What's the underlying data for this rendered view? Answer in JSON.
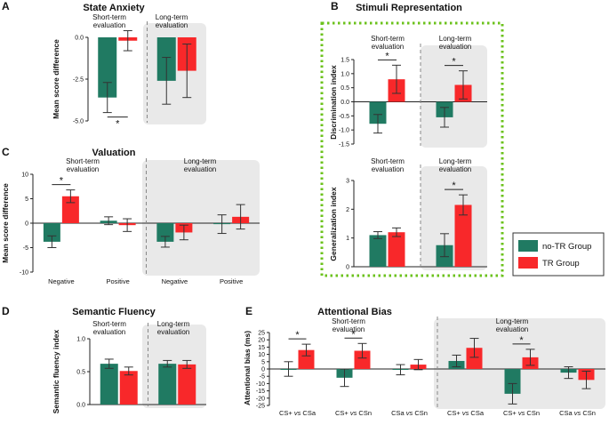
{
  "colors": {
    "no_tr": "#207a62",
    "tr": "#f8282a",
    "shade": "#e9e9e9",
    "green_box": "#6bc21b"
  },
  "legend": {
    "no_tr_label": "no-TR Group",
    "tr_label": "TR Group"
  },
  "chart_data": [
    {
      "id": "A",
      "panel_label": "A",
      "type": "bar",
      "title": "State Anxiety",
      "ylabel": "Mean score difference",
      "ylim": [
        -5,
        0
      ],
      "yticks": [
        "-5.0",
        "-2.5",
        "0.0"
      ],
      "groups": [
        {
          "label": "Short-term\nevaluation",
          "shaded": false,
          "categories": [
            {
              "label": "",
              "no_tr": -3.6,
              "no_tr_err": 0.9,
              "tr": -0.2,
              "tr_err": 0.6
            }
          ]
        },
        {
          "label": "Long-term\nevaluation",
          "shaded": true,
          "categories": [
            {
              "label": "",
              "no_tr": -2.6,
              "no_tr_err": 1.4,
              "tr": -2.0,
              "tr_err": 1.6
            }
          ]
        }
      ],
      "annotations": [
        {
          "text": "*",
          "group": 0,
          "pos": "below"
        }
      ]
    },
    {
      "id": "B1",
      "panel_label": "B",
      "type": "bar",
      "title": "Stimuli Representation",
      "ylabel": "Discrimination index",
      "ylim": [
        -1.5,
        1.5
      ],
      "yticks": [
        "-1.5",
        "-1.0",
        "-0.5",
        "0.0",
        "0.5",
        "1.0",
        "1.5"
      ],
      "groups": [
        {
          "label": "Short-term\nevaluation",
          "shaded": false,
          "categories": [
            {
              "label": "",
              "no_tr": -0.78,
              "no_tr_err": 0.33,
              "tr": 0.8,
              "tr_err": 0.5
            }
          ]
        },
        {
          "label": "Long-term\nevaluation",
          "shaded": true,
          "categories": [
            {
              "label": "",
              "no_tr": -0.55,
              "no_tr_err": 0.35,
              "tr": 0.6,
              "tr_err": 0.5
            }
          ]
        }
      ],
      "annotations": [
        {
          "text": "*",
          "group": 0,
          "pos": "above"
        },
        {
          "text": "*",
          "group": 1,
          "pos": "above"
        }
      ]
    },
    {
      "id": "B2",
      "panel_label": "",
      "type": "bar",
      "title": "",
      "ylabel": "Generalization index",
      "ylim": [
        0,
        3
      ],
      "yticks": [
        "0",
        "1",
        "2",
        "3"
      ],
      "groups": [
        {
          "label": "Short-term\nevaluation",
          "shaded": false,
          "categories": [
            {
              "label": "",
              "no_tr": 1.1,
              "no_tr_err": 0.12,
              "tr": 1.2,
              "tr_err": 0.15
            }
          ]
        },
        {
          "label": "Long-term\nevaluation",
          "shaded": true,
          "categories": [
            {
              "label": "",
              "no_tr": 0.75,
              "no_tr_err": 0.4,
              "tr": 2.15,
              "tr_err": 0.35
            }
          ]
        }
      ],
      "annotations": [
        {
          "text": "*",
          "group": 1,
          "pos": "above"
        }
      ]
    },
    {
      "id": "C",
      "panel_label": "C",
      "type": "bar",
      "title": "Valuation",
      "ylabel": "Mean score difference",
      "ylim": [
        -10,
        10
      ],
      "yticks": [
        "-10",
        "-5",
        "0",
        "5",
        "10"
      ],
      "groups": [
        {
          "label": "Short-term\nevaluation",
          "shaded": false,
          "categories": [
            {
              "label": "Negative",
              "no_tr": -3.8,
              "no_tr_err": 1.2,
              "tr": 5.5,
              "tr_err": 1.3
            },
            {
              "label": "Positive",
              "no_tr": 0.5,
              "no_tr_err": 0.8,
              "tr": -0.4,
              "tr_err": 1.3
            }
          ]
        },
        {
          "label": "Long-term\nevaluation",
          "shaded": true,
          "categories": [
            {
              "label": "Negative",
              "no_tr": -3.8,
              "no_tr_err": 1.1,
              "tr": -1.9,
              "tr_err": 1.5
            },
            {
              "label": "Positive",
              "no_tr": -0.2,
              "no_tr_err": 1.9,
              "tr": 1.3,
              "tr_err": 2.5
            }
          ]
        }
      ],
      "annotations": [
        {
          "text": "*",
          "group": 0,
          "cat": 0,
          "pos": "above"
        }
      ]
    },
    {
      "id": "D",
      "panel_label": "D",
      "type": "bar",
      "title": "Semantic Fluency",
      "ylabel": "Semantic fluency index",
      "ylim": [
        0,
        1
      ],
      "yticks": [
        "0.0",
        "0.5",
        "1.0"
      ],
      "groups": [
        {
          "label": "Short-term\nevaluation",
          "shaded": false,
          "categories": [
            {
              "label": "",
              "no_tr": 0.62,
              "no_tr_err": 0.07,
              "tr": 0.51,
              "tr_err": 0.06
            }
          ]
        },
        {
          "label": "Long-term\nevaluation",
          "shaded": true,
          "categories": [
            {
              "label": "",
              "no_tr": 0.62,
              "no_tr_err": 0.05,
              "tr": 0.61,
              "tr_err": 0.06
            }
          ]
        }
      ],
      "annotations": []
    },
    {
      "id": "E",
      "panel_label": "E",
      "type": "bar",
      "title": "Attentional Bias",
      "ylabel": "Attentional bias (ms)",
      "ylim": [
        -25,
        25
      ],
      "yticks": [
        "-25",
        "-20",
        "-15",
        "-10",
        "-5",
        "0",
        "5",
        "10",
        "15",
        "20",
        "25"
      ],
      "groups": [
        {
          "label": "Short-term\nevaluation",
          "shaded": false,
          "categories": [
            {
              "label": "CS+ vs CSa",
              "no_tr": 0,
              "no_tr_err": 5,
              "tr": 13,
              "tr_err": 4
            },
            {
              "label": "CS+ vs CSn",
              "no_tr": -6,
              "no_tr_err": 6,
              "tr": 12.5,
              "tr_err": 5
            },
            {
              "label": "CSa vs CSn",
              "no_tr": -0.5,
              "no_tr_err": 3.5,
              "tr": 3,
              "tr_err": 3.5
            }
          ]
        },
        {
          "label": "Long-term\nevaluation",
          "shaded": true,
          "categories": [
            {
              "label": "CS+ vs CSa",
              "no_tr": 5.5,
              "no_tr_err": 4,
              "tr": 14.5,
              "tr_err": 6.5
            },
            {
              "label": "CS+ vs CSn",
              "no_tr": -17,
              "no_tr_err": 7,
              "tr": 8,
              "tr_err": 5.5
            },
            {
              "label": "CSa vs CSn",
              "no_tr": -2.5,
              "no_tr_err": 4,
              "tr": -7.5,
              "tr_err": 6
            }
          ]
        }
      ],
      "annotations": [
        {
          "text": "*",
          "group": 0,
          "cat": 0,
          "pos": "above"
        },
        {
          "text": "*",
          "group": 0,
          "cat": 1,
          "pos": "above"
        },
        {
          "text": "*",
          "group": 1,
          "cat": 1,
          "pos": "above"
        }
      ]
    }
  ]
}
